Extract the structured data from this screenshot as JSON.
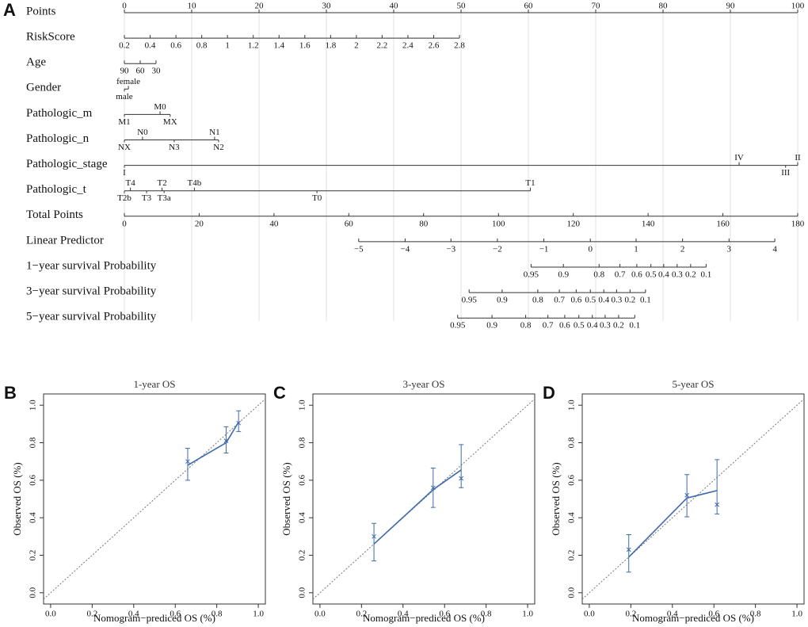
{
  "chart_data": [
    {
      "type": "nomogram",
      "panel": "A",
      "rows": [
        {
          "label": "Points",
          "ticks": [
            0,
            10,
            20,
            30,
            40,
            50,
            60,
            70,
            80,
            90,
            100
          ],
          "at": [
            0,
            10,
            20,
            30,
            40,
            50,
            60,
            70,
            80,
            90,
            100
          ]
        },
        {
          "label": "RiskScore",
          "ticks": [
            0.2,
            0.4,
            0.6,
            0.8,
            1,
            1.2,
            1.4,
            1.6,
            1.8,
            2,
            2.2,
            2.4,
            2.6,
            2.8
          ],
          "at": [
            0,
            3.83,
            7.66,
            11.49,
            15.31,
            19.14,
            22.97,
            26.8,
            30.63,
            34.46,
            38.28,
            42.11,
            45.94,
            49.77
          ]
        },
        {
          "label": "Age",
          "ticks": [
            90,
            60,
            30
          ],
          "at": [
            0,
            2.35,
            4.7
          ]
        },
        {
          "label": "Gender",
          "levels": [
            "male",
            "female"
          ],
          "at": [
            0,
            0.6
          ]
        },
        {
          "label": "Pathologic_m",
          "levels": [
            "M1",
            "M0",
            "MX"
          ],
          "at": [
            0,
            5.3,
            6.8
          ]
        },
        {
          "label": "Pathologic_n",
          "levels": [
            "NX",
            "N0",
            "N3",
            "N1",
            "N2"
          ],
          "at": [
            0,
            2.7,
            7.4,
            13.4,
            14.0
          ]
        },
        {
          "label": "Pathologic_stage",
          "levels": [
            "I",
            "IV",
            "III",
            "II"
          ],
          "at": [
            0,
            91.3,
            98.2,
            100
          ]
        },
        {
          "label": "Pathologic_t",
          "levels": [
            "T2b",
            "T4",
            "T3",
            "T2",
            "T3a",
            "T4b",
            "T0",
            "T1"
          ],
          "at": [
            0,
            0.9,
            3.3,
            5.6,
            5.9,
            10.4,
            28.6,
            60.3
          ]
        },
        {
          "label": "Total Points",
          "ticks": [
            0,
            20,
            40,
            60,
            80,
            100,
            120,
            140,
            160,
            180
          ],
          "at": [
            0,
            11.11,
            22.22,
            33.33,
            44.44,
            55.56,
            66.67,
            77.78,
            88.89,
            100
          ]
        },
        {
          "label": "Linear Predictor",
          "ticks": [
            {
              "value": -5,
              "label": "−5"
            },
            {
              "value": -4,
              "label": "−4"
            },
            {
              "value": -3,
              "label": "−3"
            },
            {
              "value": -2,
              "label": "−2"
            },
            {
              "value": -1,
              "label": "−1"
            },
            0,
            1,
            2,
            3,
            4
          ],
          "at": [
            34.8,
            41.7,
            48.5,
            55.4,
            62.3,
            69.2,
            76.0,
            82.9,
            89.8,
            96.6
          ]
        },
        {
          "label": "1−year survival Probability",
          "ticks": [
            0.95,
            0.9,
            0.8,
            0.7,
            0.6,
            0.5,
            0.4,
            0.3,
            0.2,
            0.1
          ],
          "at": [
            60.4,
            65.2,
            70.5,
            73.6,
            76.1,
            78.2,
            80.1,
            82.1,
            84.1,
            86.4
          ]
        },
        {
          "label": "3−year survival Probability",
          "ticks": [
            0.95,
            0.9,
            0.8,
            0.7,
            0.6,
            0.5,
            0.4,
            0.3,
            0.2,
            0.1
          ],
          "at": [
            51.2,
            56.1,
            61.4,
            64.6,
            67.1,
            69.2,
            71.2,
            73.1,
            75.1,
            77.4
          ]
        },
        {
          "label": "5−year survival Probability",
          "ticks": [
            0.95,
            0.9,
            0.8,
            0.7,
            0.6,
            0.5,
            0.4,
            0.3,
            0.2,
            0.1
          ],
          "at": [
            49.5,
            54.6,
            59.6,
            62.9,
            65.4,
            67.5,
            69.5,
            71.4,
            73.4,
            75.8
          ]
        }
      ]
    },
    {
      "type": "calibration",
      "panel": "B",
      "title": "1-year OS",
      "x_label": "Nomogram−prediced OS (%)",
      "y_label": "Observed OS (%)",
      "xlim": [
        -0.034,
        1.034
      ],
      "ylim": [
        -0.06,
        1.06
      ],
      "xticks": [
        {
          "value": 0,
          "label": "0.0"
        },
        0.2,
        0.4,
        0.6,
        0.8,
        {
          "value": 1,
          "label": "1.0"
        }
      ],
      "yticks": [
        {
          "value": 0,
          "label": "0.0"
        },
        0.2,
        0.4,
        0.6,
        0.8,
        {
          "value": 1,
          "label": "1.0"
        }
      ],
      "reference_line": true,
      "color": "#3d6bb3",
      "x": [
        0.66,
        0.845,
        0.905
      ],
      "values": [
        0.68,
        0.8,
        0.91
      ],
      "observed": [
        0.7,
        0.81,
        0.905
      ],
      "ci_low": [
        0.6,
        0.745,
        0.86
      ],
      "ci_high": [
        0.77,
        0.885,
        0.97
      ]
    },
    {
      "type": "calibration",
      "panel": "C",
      "title": "3-year OS",
      "x_label": "Nomogram−prediced OS (%)",
      "y_label": "Observed OS (%)",
      "xlim": [
        -0.034,
        1.034
      ],
      "ylim": [
        -0.06,
        1.06
      ],
      "xticks": [
        {
          "value": 0,
          "label": "0.0"
        },
        0.2,
        0.4,
        0.6,
        0.8,
        {
          "value": 1,
          "label": "1.0"
        }
      ],
      "yticks": [
        {
          "value": 0,
          "label": "0.0"
        },
        0.2,
        0.4,
        0.6,
        0.8,
        {
          "value": 1,
          "label": "1.0"
        }
      ],
      "reference_line": true,
      "color": "#3d6bb3",
      "x": [
        0.26,
        0.545,
        0.68
      ],
      "values": [
        0.26,
        0.55,
        0.655
      ],
      "observed": [
        0.3,
        0.56,
        0.61
      ],
      "ci_low": [
        0.17,
        0.455,
        0.56
      ],
      "ci_high": [
        0.37,
        0.665,
        0.79
      ]
    },
    {
      "type": "calibration",
      "panel": "D",
      "title": "5-year OS",
      "x_label": "Nomogram−prediced OS (%)",
      "y_label": "Observed OS (%)",
      "xlim": [
        -0.034,
        1.034
      ],
      "ylim": [
        -0.06,
        1.06
      ],
      "xticks": [
        {
          "value": 0,
          "label": "0.0"
        },
        0.2,
        0.4,
        0.6,
        0.8,
        {
          "value": 1,
          "label": "1.0"
        }
      ],
      "yticks": [
        {
          "value": 0,
          "label": "0.0"
        },
        0.2,
        0.4,
        0.6,
        0.8,
        {
          "value": 1,
          "label": "1.0"
        }
      ],
      "reference_line": true,
      "color": "#3d6bb3",
      "x": [
        0.19,
        0.47,
        0.615
      ],
      "values": [
        0.19,
        0.505,
        0.545
      ],
      "observed": [
        0.23,
        0.52,
        0.47
      ],
      "ci_low": [
        0.11,
        0.405,
        0.42
      ],
      "ci_high": [
        0.31,
        0.63,
        0.71
      ]
    }
  ]
}
